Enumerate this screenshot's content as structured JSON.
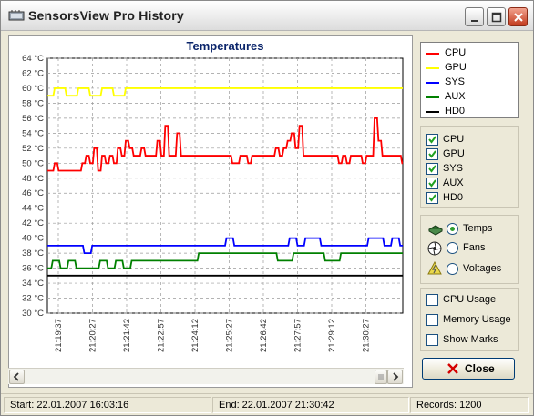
{
  "window": {
    "title": "SensorsView Pro History",
    "controls": [
      "minimize",
      "maximize",
      "close"
    ]
  },
  "chart_data": {
    "type": "line",
    "title": "Temperatures",
    "ylim": [
      30,
      64
    ],
    "y_ticks": [
      "64 °C",
      "62 °C",
      "60 °C",
      "58 °C",
      "56 °C",
      "54 °C",
      "52 °C",
      "50 °C",
      "48 °C",
      "46 °C",
      "44 °C",
      "42 °C",
      "40 °C",
      "38 °C",
      "36 °C",
      "34 °C",
      "32 °C",
      "30 °C"
    ],
    "x_ticks": [
      "21:19:37",
      "21:20:27",
      "21:21:42",
      "21:22:57",
      "21:24:12",
      "21:25:27",
      "21:26:42",
      "21:27:57",
      "21:29:12",
      "21:30:27"
    ],
    "grid": true,
    "series": [
      {
        "name": "CPU",
        "color": "#ff0000",
        "x": [
          0,
          1,
          2,
          3,
          4,
          5,
          6,
          7,
          8,
          9,
          10,
          11,
          12,
          13,
          14,
          15,
          16,
          17,
          18,
          19,
          20,
          21,
          22,
          23,
          24,
          25,
          26,
          27,
          28,
          29,
          30,
          31,
          32,
          33,
          34,
          35,
          36,
          37,
          38,
          39,
          40,
          41,
          42,
          43,
          44,
          45,
          46,
          47,
          48,
          49,
          50,
          51,
          52,
          53,
          54,
          55,
          56,
          57,
          58,
          59,
          60,
          61,
          62,
          63,
          64,
          65,
          66,
          67,
          68,
          69,
          70,
          71,
          72,
          73,
          74,
          75,
          76,
          77,
          78,
          79,
          80,
          81,
          82,
          83,
          84,
          85,
          86,
          87,
          88,
          89,
          90
        ],
        "values": [
          49,
          49,
          50,
          49,
          49,
          49,
          49,
          49,
          49,
          50,
          51,
          50,
          52,
          49,
          51,
          50,
          51,
          50,
          52,
          51,
          53,
          52,
          51,
          51,
          52,
          51,
          51,
          51,
          53,
          51,
          55,
          51,
          51,
          54,
          51,
          51,
          51,
          51,
          51,
          51,
          51,
          51,
          51,
          51,
          51,
          51,
          51,
          50,
          50,
          51,
          51,
          50,
          51,
          51,
          51,
          51,
          51,
          51,
          52,
          51,
          52,
          53,
          54,
          52,
          55,
          51,
          51,
          51,
          51,
          51,
          51,
          51,
          51,
          51,
          50,
          51,
          50,
          51,
          51,
          51,
          50,
          51,
          51,
          56,
          53,
          51,
          51,
          51,
          51,
          51,
          50
        ]
      },
      {
        "name": "GPU",
        "color": "#ffff00",
        "x": [
          0,
          3,
          6,
          9,
          12,
          15,
          18,
          21,
          24,
          27,
          30,
          33,
          36,
          39,
          42,
          45,
          48,
          51,
          54,
          57,
          60,
          63,
          66,
          69,
          72,
          75,
          78,
          81,
          84,
          87,
          90
        ],
        "values": [
          59,
          60,
          59,
          60,
          59,
          60,
          59,
          60,
          60,
          60,
          60,
          60,
          60,
          60,
          60,
          60,
          60,
          60,
          60,
          60,
          60,
          60,
          60,
          60,
          60,
          60,
          60,
          60,
          60,
          60,
          60
        ]
      },
      {
        "name": "SYS",
        "color": "#0000ff",
        "x": [
          0,
          4,
          8,
          10,
          12,
          16,
          20,
          24,
          28,
          32,
          36,
          40,
          44,
          46,
          48,
          52,
          56,
          58,
          60,
          62,
          64,
          66,
          68,
          70,
          72,
          74,
          76,
          78,
          80,
          82,
          84,
          86,
          88,
          90
        ],
        "values": [
          39,
          39,
          39,
          38,
          39,
          39,
          39,
          39,
          39,
          39,
          39,
          39,
          39,
          40,
          39,
          39,
          39,
          39,
          39,
          40,
          39,
          40,
          40,
          39,
          39,
          39,
          39,
          39,
          39,
          40,
          40,
          39,
          40,
          39
        ]
      },
      {
        "name": "AUX",
        "color": "#008000",
        "x": [
          0,
          2,
          4,
          6,
          8,
          10,
          12,
          14,
          16,
          18,
          20,
          22,
          24,
          28,
          32,
          36,
          40,
          44,
          48,
          52,
          56,
          60,
          64,
          68,
          72,
          76,
          80,
          84,
          88,
          90
        ],
        "values": [
          36,
          37,
          36,
          37,
          36,
          36,
          36,
          37,
          36,
          37,
          36,
          37,
          37,
          37,
          37,
          37,
          38,
          38,
          38,
          38,
          38,
          37,
          38,
          38,
          37,
          38,
          38,
          38,
          38,
          38
        ]
      },
      {
        "name": "HD0",
        "color": "#000000",
        "x": [
          0,
          90
        ],
        "values": [
          35,
          35
        ]
      }
    ]
  },
  "legend": [
    {
      "label": "CPU",
      "color": "#ff0000"
    },
    {
      "label": "GPU",
      "color": "#ffff00"
    },
    {
      "label": "SYS",
      "color": "#0000ff"
    },
    {
      "label": "AUX",
      "color": "#008000"
    },
    {
      "label": "HD0",
      "color": "#000000"
    }
  ],
  "sensor_checks": [
    {
      "label": "CPU",
      "checked": true
    },
    {
      "label": "GPU",
      "checked": true
    },
    {
      "label": "SYS",
      "checked": true
    },
    {
      "label": "AUX",
      "checked": true
    },
    {
      "label": "HD0",
      "checked": true
    }
  ],
  "mode_radios": [
    {
      "label": "Temps",
      "selected": true,
      "icon": "chip-icon"
    },
    {
      "label": "Fans",
      "selected": false,
      "icon": "fan-icon"
    },
    {
      "label": "Voltages",
      "selected": false,
      "icon": "voltage-icon"
    }
  ],
  "options": [
    {
      "label": "CPU Usage",
      "checked": false
    },
    {
      "label": "Memory Usage",
      "checked": false
    },
    {
      "label": "Show Marks",
      "checked": false
    }
  ],
  "close_button": "Close",
  "status": {
    "start": "Start: 22.01.2007 16:03:16",
    "end": "End: 22.01.2007 21:30:42",
    "records": "Records: 1200"
  }
}
